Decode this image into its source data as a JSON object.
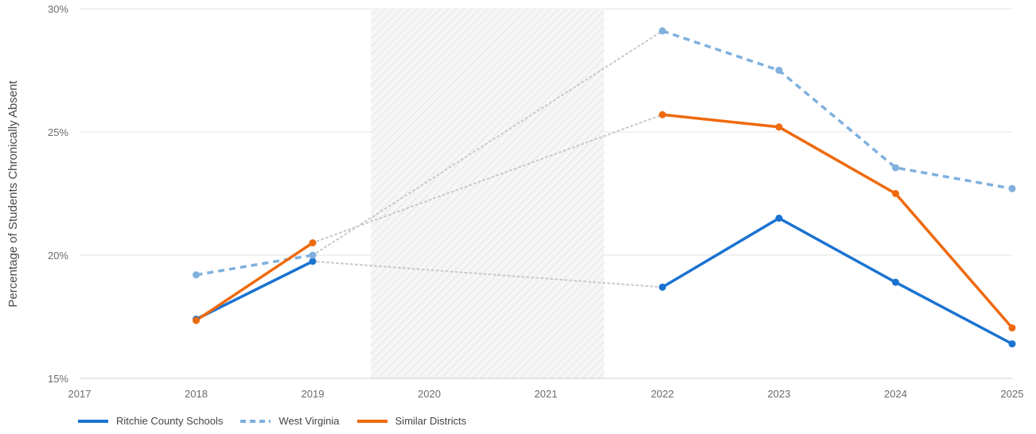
{
  "chart_data": {
    "type": "line",
    "ylabel": "Percentage of Students Chronically Absent",
    "xlabel": "",
    "x": [
      2017,
      2018,
      2019,
      2020,
      2021,
      2022,
      2023,
      2024,
      2025
    ],
    "x_tick_labels": [
      "2017",
      "2018",
      "2019",
      "2020",
      "2021",
      "2022",
      "2023",
      "2024",
      "2025"
    ],
    "xlim": [
      2017,
      2025
    ],
    "ylim": [
      15,
      30
    ],
    "y_ticks": [
      15,
      20,
      25,
      30
    ],
    "y_tick_labels": [
      "15%",
      "20%",
      "25%",
      "30%"
    ],
    "grid": true,
    "shaded_region": [
      2019.5,
      2021.5
    ],
    "gap_connector_color": "#c8c8c8",
    "series": [
      {
        "name": "Ritchie County Schools",
        "color": "#1a73d1",
        "dashed": false,
        "points": [
          [
            2018,
            17.4
          ],
          [
            2019,
            19.75
          ],
          [
            2022,
            18.7
          ],
          [
            2023,
            21.5
          ],
          [
            2024,
            18.9
          ],
          [
            2025,
            16.4
          ]
        ]
      },
      {
        "name": "West Virginia",
        "color": "#7fb0de",
        "dashed": true,
        "points": [
          [
            2018,
            19.2
          ],
          [
            2019,
            20.0
          ],
          [
            2022,
            29.1
          ],
          [
            2023,
            27.5
          ],
          [
            2024,
            23.55
          ],
          [
            2025,
            22.7
          ]
        ]
      },
      {
        "name": "Similar Districts",
        "color": "#ee6a0e",
        "dashed": false,
        "points": [
          [
            2018,
            17.35
          ],
          [
            2019,
            20.5
          ],
          [
            2022,
            25.7
          ],
          [
            2023,
            25.2
          ],
          [
            2024,
            22.5
          ],
          [
            2025,
            17.05
          ]
        ]
      }
    ],
    "legend_position": "bottom-left"
  }
}
